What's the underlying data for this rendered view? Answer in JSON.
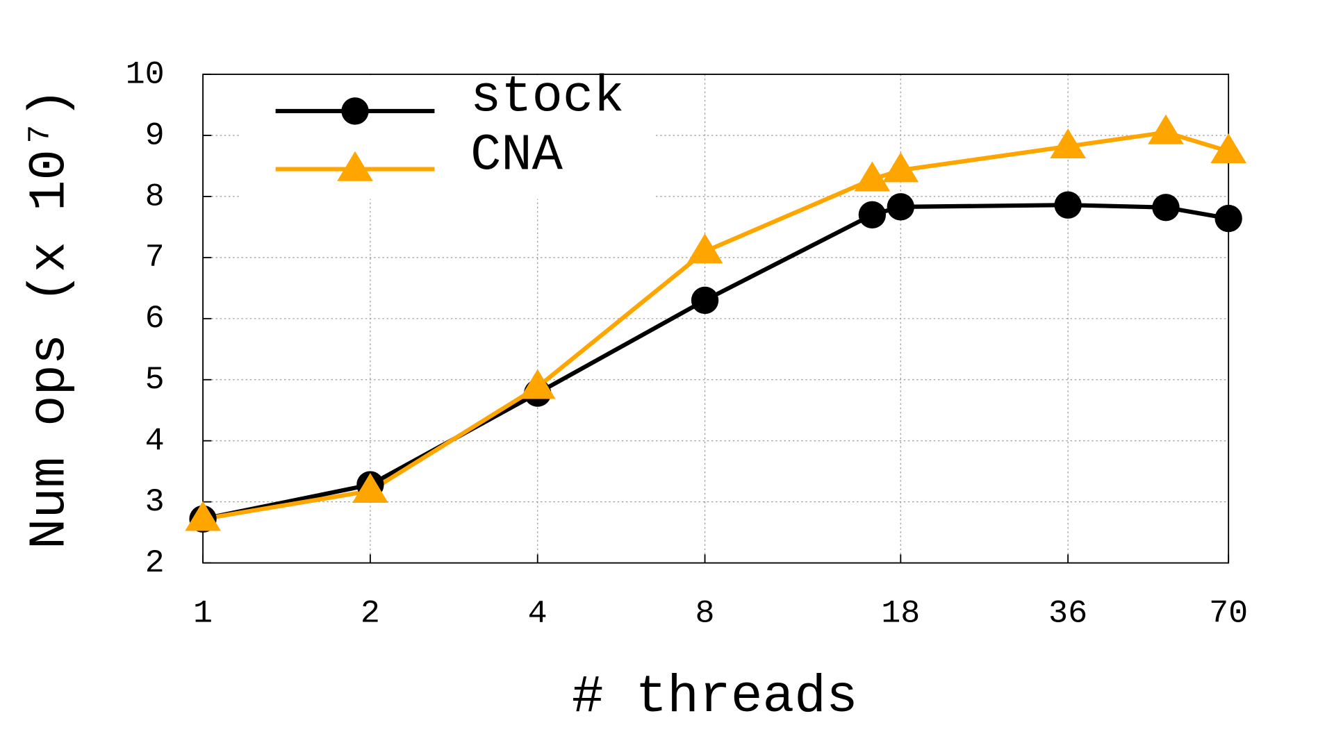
{
  "chart_data": {
    "type": "line",
    "xlabel": "# threads",
    "ylabel": "Num ops (x 10⁷)",
    "x": [
      1,
      2,
      4,
      8,
      16,
      18,
      36,
      54,
      70
    ],
    "series": [
      {
        "name": "stock",
        "color": "#000000",
        "marker": "circle",
        "values": [
          2.72,
          3.28,
          4.78,
          6.3,
          7.7,
          7.83,
          7.86,
          7.82,
          7.64
        ]
      },
      {
        "name": "CNA",
        "color": "#ffa500",
        "marker": "triangle",
        "values": [
          2.72,
          3.18,
          4.88,
          7.1,
          8.28,
          8.43,
          8.82,
          9.05,
          8.74
        ]
      }
    ],
    "xscale": "log",
    "xlim": [
      1,
      70
    ],
    "xticks": [
      1,
      2,
      4,
      8,
      18,
      36,
      70
    ],
    "ylim": [
      2,
      10
    ],
    "yticks": [
      2,
      3,
      4,
      5,
      6,
      7,
      8,
      9,
      10
    ],
    "grid": true,
    "legend": "upper left"
  }
}
